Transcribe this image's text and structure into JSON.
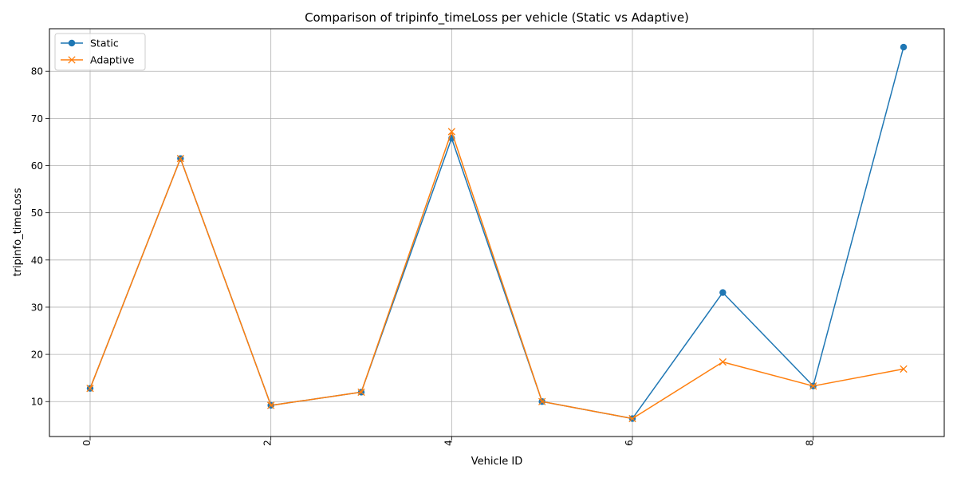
{
  "chart_data": {
    "type": "line",
    "title": "Comparison of tripinfo_timeLoss per vehicle (Static vs Adaptive)",
    "xlabel": "Vehicle ID",
    "ylabel": "tripinfo_timeLoss",
    "x": [
      0,
      1,
      2,
      3,
      4,
      5,
      6,
      7,
      8,
      9
    ],
    "xlim": [
      -0.45,
      9.45
    ],
    "ylim": [
      2.6,
      89
    ],
    "xticks": [
      0,
      2,
      4,
      6,
      8
    ],
    "yticks": [
      10,
      20,
      30,
      40,
      50,
      60,
      70,
      80
    ],
    "grid": true,
    "legend_position": "top-left",
    "series": [
      {
        "name": "Static",
        "color": "#1f77b4",
        "marker": "circle",
        "values": [
          12.8,
          61.5,
          9.2,
          12.0,
          65.8,
          10.0,
          6.4,
          33.1,
          13.3,
          85.1
        ]
      },
      {
        "name": "Adaptive",
        "color": "#ff7f0e",
        "marker": "x",
        "values": [
          12.8,
          61.5,
          9.2,
          12.0,
          67.2,
          10.0,
          6.4,
          18.4,
          13.3,
          16.9
        ]
      }
    ]
  }
}
